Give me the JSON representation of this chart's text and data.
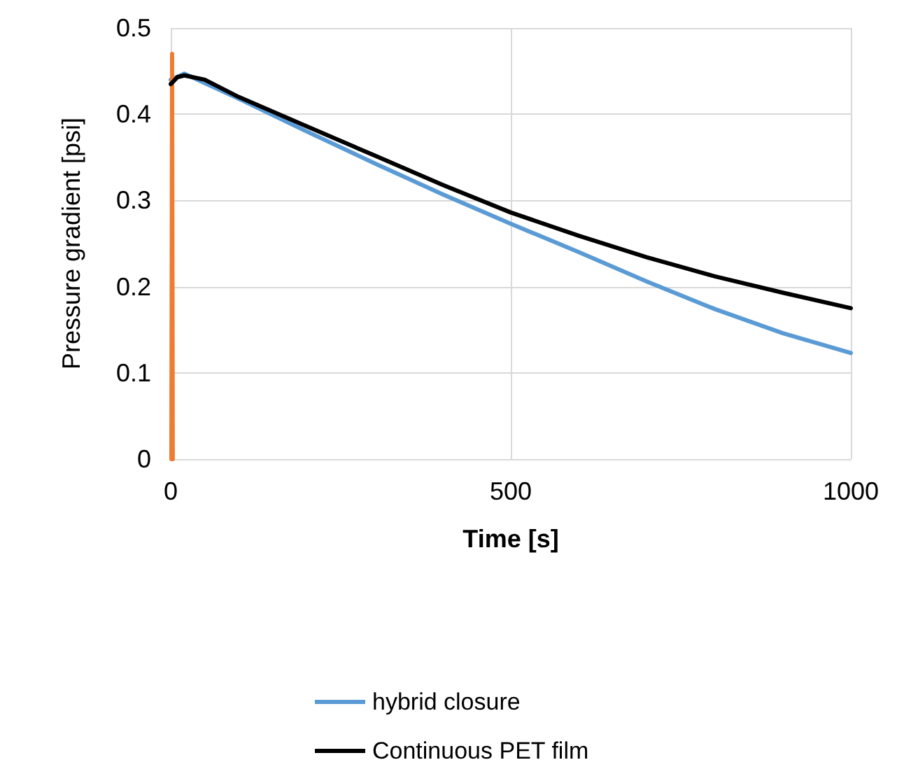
{
  "chart_data": {
    "type": "line",
    "xlabel": "Time [s]",
    "ylabel": "Pressure gradient [psi]",
    "xlim": [
      0,
      1000
    ],
    "xticks": [
      0,
      500,
      1000
    ],
    "ylim": [
      0,
      0.5
    ],
    "yticks": [
      0,
      0.1,
      0.2,
      0.3,
      0.4,
      0.5
    ],
    "grid": true,
    "legend": "bottom",
    "marker": "none",
    "line_style": "solid",
    "series": [
      {
        "name": "hybrid closure",
        "color": "#5b9bd5",
        "x": [
          0,
          20,
          100,
          200,
          300,
          400,
          500,
          600,
          700,
          800,
          900,
          1000
        ],
        "values": [
          0.44,
          0.447,
          0.418,
          0.38,
          0.343,
          0.307,
          0.273,
          0.24,
          0.206,
          0.174,
          0.146,
          0.123
        ]
      },
      {
        "color": "#ed7d31",
        "x": [
          1,
          2,
          3
        ],
        "values": [
          0,
          0.47,
          0
        ]
      },
      {
        "name": "Continuous PET film",
        "color": "#000000",
        "x": [
          0,
          10,
          20,
          50,
          100,
          200,
          300,
          400,
          500,
          600,
          700,
          800,
          900,
          1000
        ],
        "values": [
          0.435,
          0.443,
          0.445,
          0.44,
          0.42,
          0.386,
          0.352,
          0.318,
          0.286,
          0.259,
          0.234,
          0.212,
          0.193,
          0.175
        ]
      }
    ]
  }
}
